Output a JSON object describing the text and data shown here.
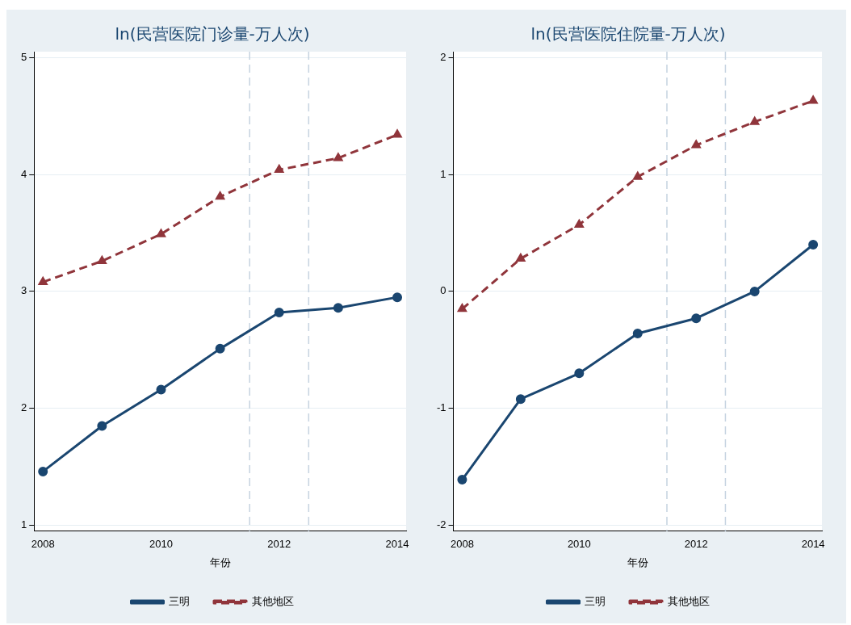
{
  "chart_data": [
    {
      "type": "line",
      "title": "ln(民营医院门诊量-万人次)",
      "xlabel": "年份",
      "x": [
        2008,
        2009,
        2010,
        2011,
        2012,
        2013,
        2014
      ],
      "xlim": [
        2007.85,
        2014.15
      ],
      "xticks": [
        2008,
        2010,
        2012,
        2014
      ],
      "ylim": [
        0.95,
        5.05
      ],
      "yticks": [
        1,
        2,
        3,
        4,
        5
      ],
      "grid": "y",
      "legend": "bottom",
      "series": [
        {
          "name": "三明",
          "color": "#1a4670",
          "marker": "circle",
          "line_style": "solid",
          "values": [
            1.46,
            1.85,
            2.16,
            2.51,
            2.82,
            2.86,
            2.95
          ]
        },
        {
          "name": "其他地区",
          "color": "#90353b",
          "marker": "triangle",
          "line_style": "dashed",
          "values": [
            3.08,
            3.26,
            3.49,
            3.81,
            4.04,
            4.14,
            4.34
          ]
        }
      ],
      "ref_lines": [
        {
          "axis": "x",
          "value": 2011.5,
          "color": "#c5d3e0",
          "line_style": "dashed"
        },
        {
          "axis": "x",
          "value": 2012.5,
          "color": "#c5d3e0",
          "line_style": "dashed"
        }
      ]
    },
    {
      "type": "line",
      "title": "ln(民营医院住院量-万人次)",
      "xlabel": "年份",
      "x": [
        2008,
        2009,
        2010,
        2011,
        2012,
        2013,
        2014
      ],
      "xlim": [
        2007.85,
        2014.15
      ],
      "xticks": [
        2008,
        2010,
        2012,
        2014
      ],
      "ylim": [
        -2.05,
        2.05
      ],
      "yticks": [
        -2,
        -1,
        0,
        1,
        2
      ],
      "grid": "y",
      "legend": "bottom",
      "series": [
        {
          "name": "三明",
          "color": "#1a4670",
          "marker": "circle",
          "line_style": "solid",
          "values": [
            -1.61,
            -0.92,
            -0.7,
            -0.36,
            -0.23,
            0.0,
            0.4
          ]
        },
        {
          "name": "其他地区",
          "color": "#90353b",
          "marker": "triangle",
          "line_style": "dashed",
          "values": [
            -0.15,
            0.28,
            0.57,
            0.98,
            1.25,
            1.45,
            1.63
          ]
        }
      ],
      "ref_lines": [
        {
          "axis": "x",
          "value": 2011.5,
          "color": "#c5d3e0",
          "line_style": "dashed"
        },
        {
          "axis": "x",
          "value": 2012.5,
          "color": "#c5d3e0",
          "line_style": "dashed"
        }
      ]
    }
  ]
}
